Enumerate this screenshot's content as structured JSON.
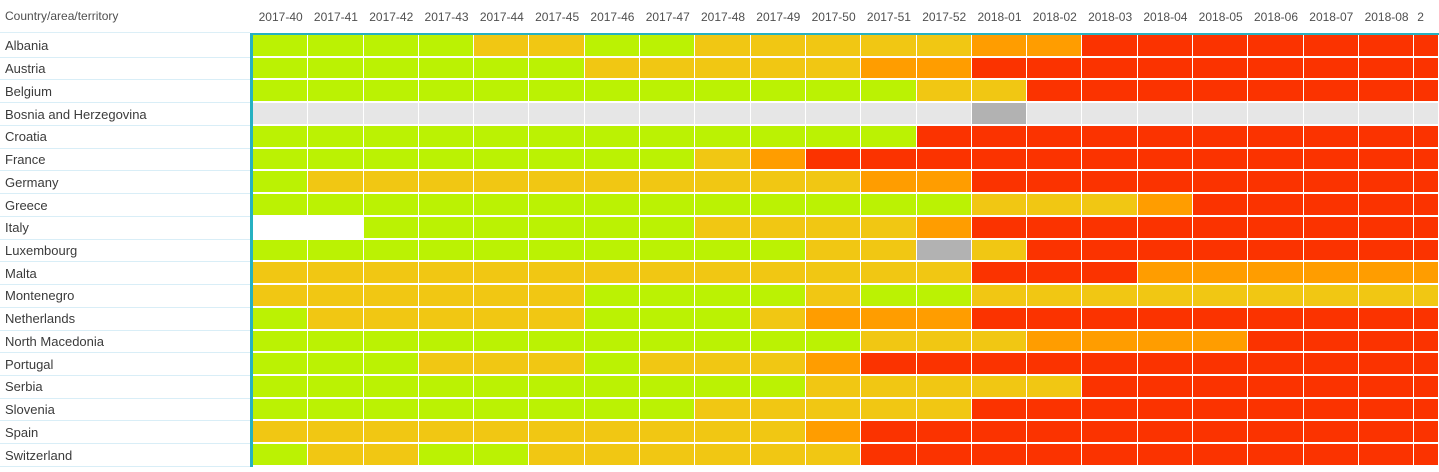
{
  "chart_data": {
    "type": "heatmap",
    "title": "",
    "row_header": "Country/area/territory",
    "columns": [
      "2017-40",
      "2017-41",
      "2017-42",
      "2017-43",
      "2017-44",
      "2017-45",
      "2017-46",
      "2017-47",
      "2017-48",
      "2017-49",
      "2017-50",
      "2017-51",
      "2017-52",
      "2018-01",
      "2018-02",
      "2018-03",
      "2018-04",
      "2018-05",
      "2018-06",
      "2018-07",
      "2018-08"
    ],
    "partial_column_label": "2",
    "palette": {
      "G": "#BBF203",
      "Y": "#F1C713",
      "O": "#FF9D00",
      "R": "#FB3300",
      "LG": "#E6E6E6",
      "DG": "#B2B2B2",
      "W": "#FFFFFF"
    },
    "palette_names": {
      "G": "green",
      "Y": "yellow",
      "O": "orange",
      "R": "red",
      "LG": "light-gray",
      "DG": "dark-gray",
      "W": "white"
    },
    "rows": [
      {
        "label": "Albania",
        "values": [
          "G",
          "G",
          "G",
          "G",
          "Y",
          "Y",
          "G",
          "G",
          "Y",
          "Y",
          "Y",
          "Y",
          "Y",
          "O",
          "O",
          "R",
          "R",
          "R",
          "R",
          "R",
          "R",
          "R"
        ]
      },
      {
        "label": "Austria",
        "values": [
          "G",
          "G",
          "G",
          "G",
          "G",
          "G",
          "Y",
          "Y",
          "Y",
          "Y",
          "Y",
          "O",
          "O",
          "R",
          "R",
          "R",
          "R",
          "R",
          "R",
          "R",
          "R",
          "R"
        ]
      },
      {
        "label": "Belgium",
        "values": [
          "G",
          "G",
          "G",
          "G",
          "G",
          "G",
          "G",
          "G",
          "G",
          "G",
          "G",
          "G",
          "Y",
          "Y",
          "R",
          "R",
          "R",
          "R",
          "R",
          "R",
          "R",
          "R"
        ]
      },
      {
        "label": "Bosnia and Herzegovina",
        "values": [
          "LG",
          "LG",
          "LG",
          "LG",
          "LG",
          "LG",
          "LG",
          "LG",
          "LG",
          "LG",
          "LG",
          "LG",
          "LG",
          "DG",
          "LG",
          "LG",
          "LG",
          "LG",
          "LG",
          "LG",
          "LG",
          "LG"
        ]
      },
      {
        "label": "Croatia",
        "values": [
          "G",
          "G",
          "G",
          "G",
          "G",
          "G",
          "G",
          "G",
          "G",
          "G",
          "G",
          "G",
          "R",
          "R",
          "R",
          "R",
          "R",
          "R",
          "R",
          "R",
          "R",
          "R"
        ]
      },
      {
        "label": "France",
        "values": [
          "G",
          "G",
          "G",
          "G",
          "G",
          "G",
          "G",
          "G",
          "Y",
          "O",
          "R",
          "R",
          "R",
          "R",
          "R",
          "R",
          "R",
          "R",
          "R",
          "R",
          "R",
          "R"
        ]
      },
      {
        "label": "Germany",
        "values": [
          "G",
          "Y",
          "Y",
          "Y",
          "Y",
          "Y",
          "Y",
          "Y",
          "Y",
          "Y",
          "Y",
          "O",
          "O",
          "R",
          "R",
          "R",
          "R",
          "R",
          "R",
          "R",
          "R",
          "R"
        ]
      },
      {
        "label": "Greece",
        "values": [
          "G",
          "G",
          "G",
          "G",
          "G",
          "G",
          "G",
          "G",
          "G",
          "G",
          "G",
          "G",
          "G",
          "Y",
          "Y",
          "Y",
          "O",
          "R",
          "R",
          "R",
          "R",
          "R"
        ]
      },
      {
        "label": "Italy",
        "values": [
          "W",
          "W",
          "G",
          "G",
          "G",
          "G",
          "G",
          "G",
          "Y",
          "Y",
          "Y",
          "Y",
          "O",
          "R",
          "R",
          "R",
          "R",
          "R",
          "R",
          "R",
          "R",
          "R"
        ]
      },
      {
        "label": "Luxembourg",
        "values": [
          "G",
          "G",
          "G",
          "G",
          "G",
          "G",
          "G",
          "G",
          "G",
          "G",
          "Y",
          "Y",
          "DG",
          "Y",
          "R",
          "R",
          "R",
          "R",
          "R",
          "R",
          "R",
          "R"
        ]
      },
      {
        "label": "Malta",
        "values": [
          "Y",
          "Y",
          "Y",
          "Y",
          "Y",
          "Y",
          "Y",
          "Y",
          "Y",
          "Y",
          "Y",
          "Y",
          "Y",
          "R",
          "R",
          "R",
          "O",
          "O",
          "O",
          "O",
          "O",
          "O"
        ]
      },
      {
        "label": "Montenegro",
        "values": [
          "Y",
          "Y",
          "Y",
          "Y",
          "Y",
          "Y",
          "G",
          "G",
          "G",
          "G",
          "Y",
          "G",
          "G",
          "Y",
          "Y",
          "Y",
          "Y",
          "Y",
          "Y",
          "Y",
          "Y",
          "Y"
        ]
      },
      {
        "label": "Netherlands",
        "values": [
          "G",
          "Y",
          "Y",
          "Y",
          "Y",
          "Y",
          "G",
          "G",
          "G",
          "Y",
          "O",
          "O",
          "O",
          "R",
          "R",
          "R",
          "R",
          "R",
          "R",
          "R",
          "R",
          "R"
        ]
      },
      {
        "label": "North Macedonia",
        "values": [
          "G",
          "G",
          "G",
          "G",
          "G",
          "G",
          "G",
          "G",
          "G",
          "G",
          "G",
          "Y",
          "Y",
          "Y",
          "O",
          "O",
          "O",
          "O",
          "R",
          "R",
          "R",
          "R"
        ]
      },
      {
        "label": "Portugal",
        "values": [
          "G",
          "G",
          "G",
          "Y",
          "Y",
          "Y",
          "G",
          "Y",
          "Y",
          "Y",
          "O",
          "R",
          "R",
          "R",
          "R",
          "R",
          "R",
          "R",
          "R",
          "R",
          "R",
          "R"
        ]
      },
      {
        "label": "Serbia",
        "values": [
          "G",
          "G",
          "G",
          "G",
          "G",
          "G",
          "G",
          "G",
          "G",
          "G",
          "Y",
          "Y",
          "Y",
          "Y",
          "Y",
          "R",
          "R",
          "R",
          "R",
          "R",
          "R",
          "R"
        ]
      },
      {
        "label": "Slovenia",
        "values": [
          "G",
          "G",
          "G",
          "G",
          "G",
          "G",
          "G",
          "G",
          "Y",
          "Y",
          "Y",
          "Y",
          "Y",
          "R",
          "R",
          "R",
          "R",
          "R",
          "R",
          "R",
          "R",
          "R"
        ]
      },
      {
        "label": "Spain",
        "values": [
          "Y",
          "Y",
          "Y",
          "Y",
          "Y",
          "Y",
          "Y",
          "Y",
          "Y",
          "Y",
          "O",
          "R",
          "R",
          "R",
          "R",
          "R",
          "R",
          "R",
          "R",
          "R",
          "R",
          "R"
        ]
      },
      {
        "label": "Switzerland",
        "values": [
          "G",
          "Y",
          "Y",
          "G",
          "G",
          "Y",
          "Y",
          "Y",
          "Y",
          "Y",
          "Y",
          "R",
          "R",
          "R",
          "R",
          "R",
          "R",
          "R",
          "R",
          "R",
          "R",
          "R"
        ]
      }
    ],
    "layout": {
      "grid": "white 1-2px gaps between cells",
      "legend_position": "none visible"
    }
  },
  "accent": {
    "teal_line": "#26B1C1",
    "row_separator": "#D9EEF7",
    "header_text_color": "#4F4F4F",
    "label_text_color": "#3B3B3B"
  }
}
